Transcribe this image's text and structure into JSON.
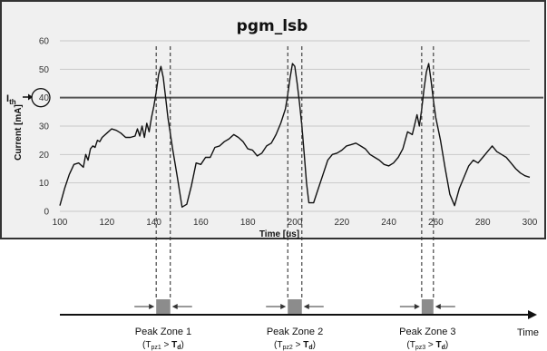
{
  "chart_data": {
    "type": "line",
    "title": "pgm_lsb",
    "xlabel": "Time [us]",
    "ylabel": "Current [mA]",
    "xlim": [
      100,
      300
    ],
    "ylim": [
      0,
      60
    ],
    "xticks": [
      100,
      120,
      140,
      160,
      180,
      200,
      220,
      240,
      260,
      280,
      300
    ],
    "yticks": [
      0,
      10,
      20,
      30,
      40,
      50,
      60
    ],
    "grid": "horizontal",
    "threshold": {
      "label_main": "I",
      "label_sub": "th",
      "value": 40
    },
    "series": [
      {
        "x": [
          100,
          102,
          104,
          106,
          108,
          110,
          111,
          112,
          113,
          114,
          115,
          116,
          117,
          118,
          120,
          122,
          124,
          126,
          128,
          130,
          132,
          133,
          134,
          135,
          136,
          137,
          138,
          139,
          140,
          141,
          142,
          143,
          144,
          145,
          146,
          148,
          150,
          152,
          154,
          156,
          158,
          160,
          162,
          164,
          166,
          168,
          170,
          172,
          174,
          176,
          178,
          180,
          182,
          184,
          186,
          188,
          190,
          192,
          194,
          196,
          197,
          198,
          199,
          200,
          201,
          202,
          203,
          204,
          205,
          206,
          208,
          210,
          212,
          214,
          216,
          218,
          220,
          222,
          224,
          226,
          228,
          230,
          232,
          234,
          236,
          238,
          240,
          242,
          244,
          246,
          248,
          250,
          252,
          253,
          254,
          255,
          256,
          257,
          258,
          259,
          260,
          262,
          264,
          266,
          268,
          270,
          272,
          274,
          276,
          278,
          280,
          282,
          284,
          286,
          288,
          290,
          292,
          294,
          296,
          298,
          300
        ],
        "y": [
          2,
          8,
          13,
          16.5,
          17,
          15.5,
          20,
          18,
          22,
          23,
          22.5,
          25,
          24.5,
          26,
          27.5,
          29,
          28.5,
          27.5,
          26,
          26,
          26.5,
          29,
          26.5,
          30,
          26,
          31,
          28,
          33,
          37,
          42,
          48,
          51,
          47,
          40,
          33,
          22,
          12,
          1.5,
          2.5,
          9,
          17,
          16.5,
          19,
          19,
          22.5,
          23,
          24.5,
          25.5,
          27,
          26,
          24.5,
          22,
          21.5,
          19.5,
          20.5,
          23,
          24,
          27,
          31,
          36,
          41,
          47,
          52,
          51,
          45,
          38,
          30,
          20,
          10,
          3,
          3,
          8,
          13,
          18,
          20,
          20.5,
          21.5,
          23,
          23.5,
          24,
          23,
          22,
          20,
          19,
          18,
          16.5,
          16,
          17,
          19,
          22,
          28,
          27,
          34,
          30,
          36,
          43,
          49,
          52,
          46,
          39,
          33,
          25,
          15,
          6,
          2,
          8,
          12,
          16,
          18,
          17,
          19,
          21,
          23,
          21,
          20,
          19,
          17,
          15,
          13.5,
          12.5,
          12
        ]
      }
    ],
    "peak_zones": [
      {
        "label": "Peak Zone 1",
        "condition_open": "(",
        "t_main": "T",
        "t_sub": "pz1",
        "gt": " > ",
        "d_main": "T",
        "d_sub": "d",
        "condition_close": ")",
        "t_start": 141,
        "t_end": 147
      },
      {
        "label": "Peak Zone 2",
        "condition_open": "(",
        "t_main": "T",
        "t_sub": "pz2",
        "gt": " > ",
        "d_main": "T",
        "d_sub": "d",
        "condition_close": ")",
        "t_start": 197,
        "t_end": 203
      },
      {
        "label": "Peak Zone 3",
        "condition_open": "(",
        "t_main": "T",
        "t_sub": "pz3",
        "gt": " > ",
        "d_main": "T",
        "d_sub": "d",
        "condition_close": ")",
        "t_start": 254,
        "t_end": 259
      }
    ],
    "timeline_label": "Time"
  },
  "colors": {
    "plot_bg": "#f0f0f0",
    "frame": "#333333",
    "line": "#111111",
    "threshold_line": "#555555",
    "zone_box": "#8c8c8c"
  }
}
